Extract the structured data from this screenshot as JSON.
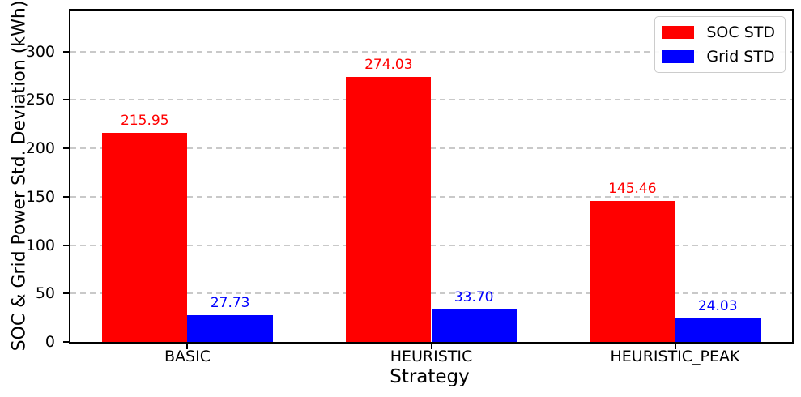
{
  "chart_data": {
    "type": "bar",
    "title": "",
    "xlabel": "Strategy",
    "ylabel": "SOC & Grid Power Std. Deviation (kWh)",
    "categories": [
      "BASIC",
      "HEURISTIC",
      "HEURISTIC_PEAK"
    ],
    "series": [
      {
        "name": "SOC STD",
        "color": "#ff0000",
        "values": [
          215.95,
          274.03,
          145.46
        ]
      },
      {
        "name": "Grid STD",
        "color": "#0000ff",
        "values": [
          27.73,
          33.7,
          24.03
        ]
      }
    ],
    "value_label_decimals": 2,
    "yticks": [
      0,
      50,
      100,
      150,
      200,
      250,
      300
    ],
    "ylim": [
      0,
      342.5
    ],
    "xlim": [
      -0.48,
      2.48
    ],
    "bar_width_units": 0.35,
    "grid": "horizontal-dashed",
    "grid_color": "#c9c9c9",
    "legend_position": "upper-right",
    "legend_entries": [
      "SOC STD",
      "Grid STD"
    ]
  }
}
